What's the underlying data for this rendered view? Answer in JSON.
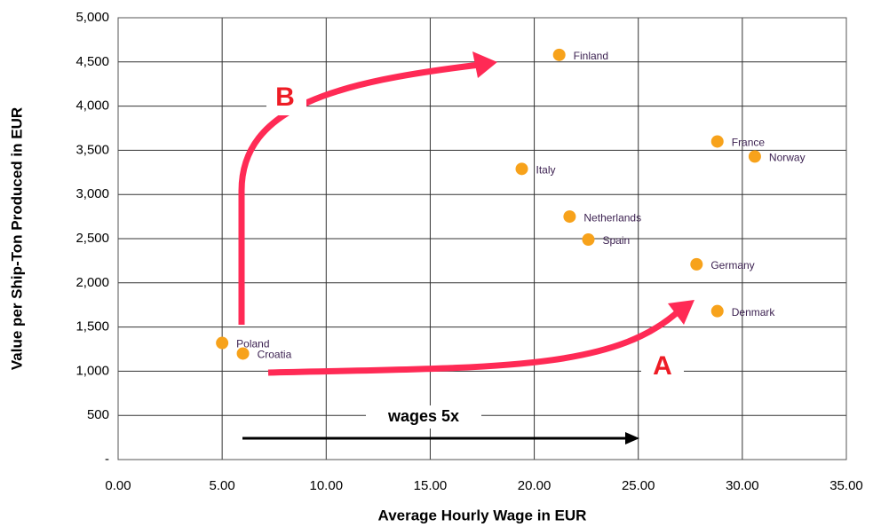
{
  "chart_data": {
    "type": "scatter",
    "x_label": "Average Hourly Wage in EUR",
    "y_label": "Value per Ship-Ton Produced in EUR",
    "names": [
      "Poland",
      "Croatia",
      "Finland",
      "France",
      "Norway",
      "Italy",
      "Netherlands",
      "Spain",
      "Germany",
      "Denmark"
    ],
    "x": [
      5.0,
      6.0,
      21.2,
      28.8,
      30.6,
      19.4,
      21.7,
      22.6,
      27.8,
      28.8
    ],
    "values": [
      1320,
      1200,
      4580,
      3600,
      3430,
      3290,
      2750,
      2490,
      2210,
      1680
    ],
    "color": "#f7a21b",
    "xlim": [
      0,
      35
    ],
    "xticks": [
      {
        "value": 0,
        "label": "0.00"
      },
      {
        "value": 5,
        "label": "5.00"
      },
      {
        "value": 10,
        "label": "10.00"
      },
      {
        "value": 15,
        "label": "15.00"
      },
      {
        "value": 20,
        "label": "20.00"
      },
      {
        "value": 25,
        "label": "25.00"
      },
      {
        "value": 30,
        "label": "30.00"
      },
      {
        "value": 35,
        "label": "35.00"
      }
    ],
    "ylim": [
      0,
      5000
    ],
    "yticks": [
      {
        "value": 0,
        "label": "-"
      },
      500,
      {
        "value": 1000,
        "label": "1,000"
      },
      {
        "value": 1500,
        "label": "1,500"
      },
      {
        "value": 2000,
        "label": "2,000"
      },
      {
        "value": 2500,
        "label": "2,500"
      },
      {
        "value": 3000,
        "label": "3,000"
      },
      {
        "value": 3500,
        "label": "3,500"
      },
      {
        "value": 4000,
        "label": "4,000"
      },
      {
        "value": 4500,
        "label": "4,500"
      },
      {
        "value": 5000,
        "label": "5,000"
      }
    ],
    "grid": true,
    "annotations": [
      "B",
      "A",
      "wages 5x"
    ]
  }
}
